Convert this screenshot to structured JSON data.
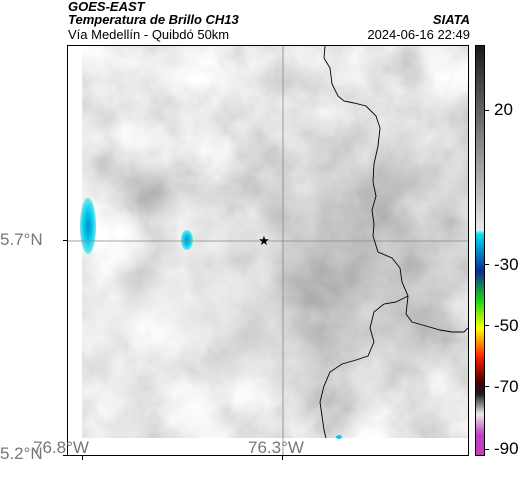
{
  "header": {
    "product": "GOES-EAST",
    "subtitle": "Temperatura de Brillo CH13",
    "location": "Vía Medellín - Quibdó 50km",
    "source": "SIATA",
    "datetime": "2024-06-16 22:49"
  },
  "map": {
    "lat_labels": [
      "5.7°N",
      "5.2°N"
    ],
    "lon_labels": [
      "76.8°W",
      "76.3°W"
    ],
    "marker_icon": "star-icon",
    "border_color": "#000000",
    "gridline_color": "#888888"
  },
  "colorbar": {
    "labels": [
      "20",
      "-30",
      "-50",
      "-70",
      "-90"
    ],
    "colors": {
      "gray_dark": "#1a1a1a",
      "gray_light": "#e8e8e8",
      "cyan": "#00e0f0",
      "blue": "#0a2a9a",
      "green": "#1ad01a",
      "yellow": "#ffff00",
      "red": "#ff2000",
      "dark_red": "#500000",
      "magenta": "#c040c0"
    }
  }
}
